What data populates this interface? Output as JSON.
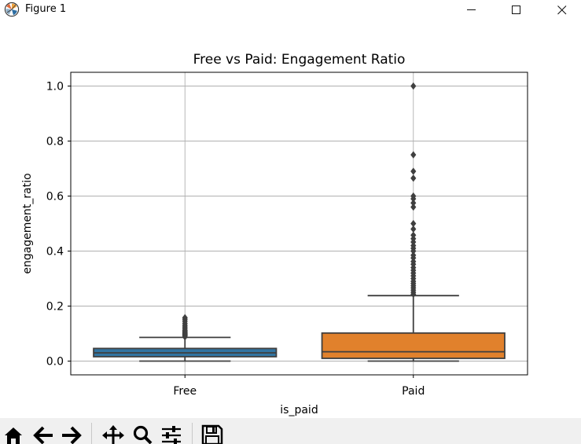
{
  "window": {
    "title": "Figure 1",
    "controls": [
      "minimize",
      "maximize",
      "close"
    ]
  },
  "toolbar": {
    "tools": [
      "home-icon",
      "back-arrow-icon",
      "forward-arrow-icon",
      "pan-icon",
      "zoom-icon",
      "configure-subplots-icon",
      "save-icon"
    ]
  },
  "chart_data": {
    "type": "box",
    "title": "Free vs Paid: Engagement Ratio",
    "xlabel": "is_paid",
    "ylabel": "engagement_ratio",
    "categories": [
      "Free",
      "Paid"
    ],
    "ylim": [
      -0.05,
      1.05
    ],
    "yticks": [
      0.0,
      0.2,
      0.4,
      0.6,
      0.8,
      1.0
    ],
    "ytick_labels": [
      "0.0",
      "0.2",
      "0.4",
      "0.6",
      "0.8",
      "1.0"
    ],
    "grid": true,
    "colors": [
      "#3274a1",
      "#e1812c"
    ],
    "edge_color": "#3f3f3f",
    "boxes": [
      {
        "name": "Free",
        "whisker_low": 0.0,
        "q1": 0.016,
        "median": 0.03,
        "q3": 0.046,
        "whisker_high": 0.086,
        "outliers": [
          0.088,
          0.092,
          0.095,
          0.098,
          0.101,
          0.104,
          0.108,
          0.112,
          0.118,
          0.124,
          0.13,
          0.137,
          0.145,
          0.152,
          0.158
        ]
      },
      {
        "name": "Paid",
        "whisker_low": 0.0,
        "q1": 0.01,
        "median": 0.034,
        "q3": 0.102,
        "whisker_high": 0.238,
        "outliers": [
          0.243,
          0.25,
          0.258,
          0.266,
          0.274,
          0.282,
          0.29,
          0.3,
          0.31,
          0.32,
          0.33,
          0.34,
          0.352,
          0.362,
          0.375,
          0.385,
          0.4,
          0.41,
          0.42,
          0.433,
          0.445,
          0.458,
          0.48,
          0.5,
          0.56,
          0.575,
          0.59,
          0.6,
          0.665,
          0.69,
          0.75,
          1.0
        ]
      }
    ]
  }
}
